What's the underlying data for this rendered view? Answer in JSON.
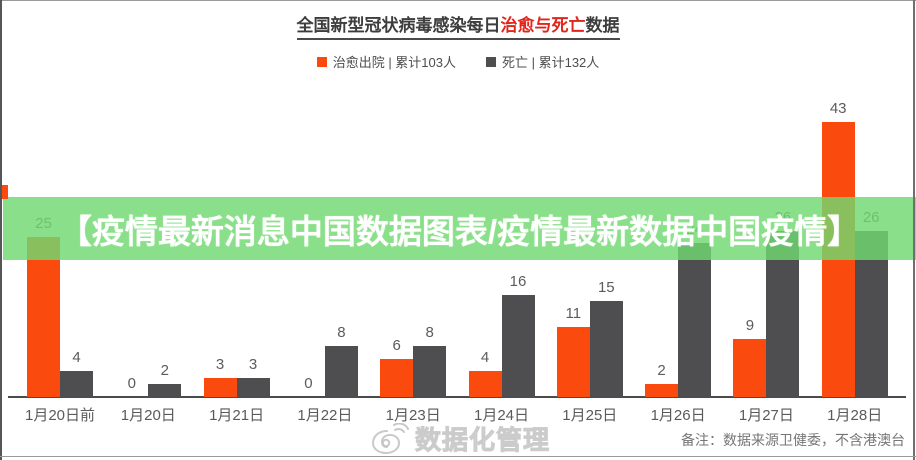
{
  "title": {
    "prefix": "全国新型冠状病毒感染每日",
    "highlight": "治愈与死亡",
    "suffix": "数据"
  },
  "legend": [
    {
      "label": "治愈出院 | 累计103人",
      "color": "#fb4a0d"
    },
    {
      "label": "死亡 | 累计132人",
      "color": "#4e4e50"
    }
  ],
  "overlay_banner": {
    "text": "【疫情最新消息中国数据图表/疫情最新数据中国疫情】",
    "bg_color": "#70d970",
    "text_color": "#ffffff"
  },
  "watermark": {
    "icon": "weibo-spiral-icon",
    "text": "数据化管理"
  },
  "footnote": "备注：数据来源卫健委，不含港澳台",
  "chart_data": {
    "type": "bar",
    "title": "全国新型冠状病毒感染每日治愈与死亡数据",
    "categories": [
      "1月20日前",
      "1月20日",
      "1月21日",
      "1月22日",
      "1月23日",
      "1月24日",
      "1月25日",
      "1月26日",
      "1月27日",
      "1月28日"
    ],
    "series": [
      {
        "name": "治愈出院",
        "color": "#fb4a0d",
        "values": [
          25,
          0,
          3,
          0,
          6,
          4,
          11,
          2,
          9,
          43
        ],
        "cumulative_total": 103
      },
      {
        "name": "死亡",
        "color": "#4e4e50",
        "values": [
          4,
          2,
          3,
          8,
          8,
          16,
          15,
          24,
          26,
          26
        ],
        "cumulative_total": 132
      }
    ],
    "xlabel": "",
    "ylabel": "",
    "ylim": [
      0,
      45
    ],
    "grid": false,
    "data_labels": true,
    "legend_position": "top"
  }
}
